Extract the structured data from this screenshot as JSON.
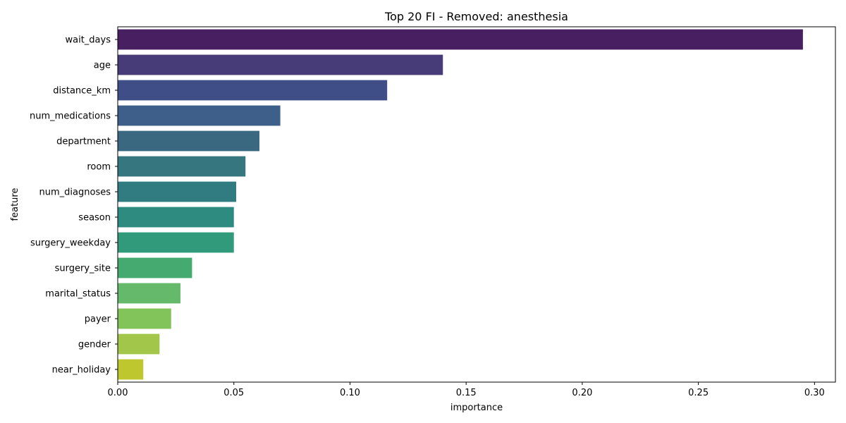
{
  "chart_data": {
    "type": "bar",
    "orientation": "horizontal",
    "title": "Top 20 FI - Removed: anesthesia",
    "xlabel": "importance",
    "ylabel": "feature",
    "xlim": [
      0,
      0.309
    ],
    "xticks": [
      "0.00",
      "0.05",
      "0.10",
      "0.15",
      "0.20",
      "0.25",
      "0.30"
    ],
    "categories": [
      "wait_days",
      "age",
      "distance_km",
      "num_medications",
      "department",
      "room",
      "num_diagnoses",
      "season",
      "surgery_weekday",
      "surgery_site",
      "marital_status",
      "payer",
      "gender",
      "near_holiday"
    ],
    "values": [
      0.295,
      0.14,
      0.116,
      0.07,
      0.061,
      0.055,
      0.051,
      0.05,
      0.05,
      0.032,
      0.027,
      0.023,
      0.018,
      0.011
    ],
    "colors": [
      "#481f60",
      "#473b78",
      "#404e87",
      "#3e5f8a",
      "#3a6881",
      "#36767f",
      "#307c81",
      "#2e8b7f",
      "#319a7a",
      "#45aa6f",
      "#64b96b",
      "#82c35a",
      "#a2c649",
      "#bec82e"
    ],
    "grid": false,
    "legend": "none"
  }
}
